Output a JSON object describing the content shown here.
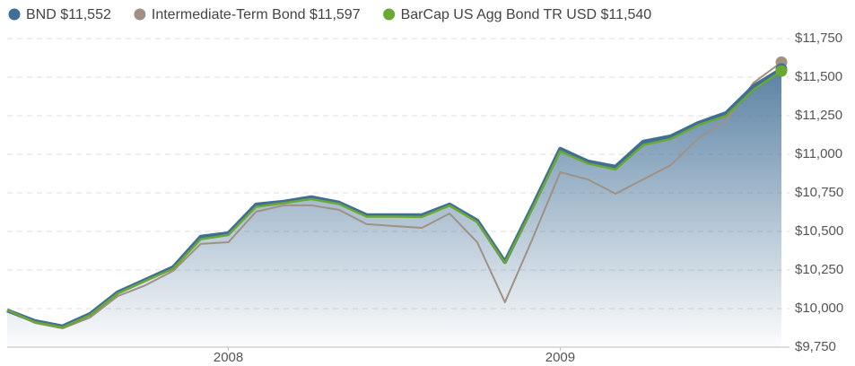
{
  "chart_data": {
    "type": "line",
    "categories": [
      null,
      null,
      null,
      null,
      null,
      null,
      null,
      null,
      "2008",
      null,
      null,
      null,
      null,
      null,
      null,
      null,
      null,
      null,
      null,
      null,
      "2009",
      null,
      null,
      null,
      null,
      null,
      null,
      null,
      null
    ],
    "series": [
      {
        "name": "BND $11,552",
        "color": "#3f6e96",
        "values": [
          9988,
          9919,
          9884,
          9965,
          10105,
          10186,
          10267,
          10465,
          10488,
          10674,
          10692,
          10721,
          10686,
          10605,
          10605,
          10605,
          10674,
          10570,
          10302,
          10663,
          11035,
          10953,
          10919,
          11081,
          11116,
          11203,
          11267,
          11442,
          11552
        ]
      },
      {
        "name": "Intermediate-Term Bond $11,597",
        "color": "#a09184",
        "values": [
          9990,
          9907,
          9872,
          9942,
          10081,
          10151,
          10244,
          10419,
          10430,
          10628,
          10669,
          10669,
          10640,
          10547,
          10535,
          10523,
          10616,
          10430,
          10041,
          10453,
          10884,
          10837,
          10744,
          10837,
          10930,
          11105,
          11221,
          11465,
          11597
        ]
      },
      {
        "name": "BarCap US Agg Bond TR USD $11,540",
        "color": "#6aa832",
        "values": [
          9990,
          9912,
          9878,
          9958,
          10098,
          10180,
          10258,
          10450,
          10477,
          10660,
          10684,
          10710,
          10678,
          10596,
          10596,
          10594,
          10668,
          10560,
          10296,
          10650,
          11020,
          10940,
          10902,
          11060,
          11100,
          11190,
          11250,
          11420,
          11540
        ]
      }
    ],
    "ylim": [
      9750,
      11750
    ],
    "yticks": [
      {
        "value": 9750,
        "label": "$9,750"
      },
      {
        "value": 10000,
        "label": "$10,000"
      },
      {
        "value": 10250,
        "label": "$10,250"
      },
      {
        "value": 10500,
        "label": "$10,500"
      },
      {
        "value": 10750,
        "label": "$10,750"
      },
      {
        "value": 11000,
        "label": "$11,000"
      },
      {
        "value": 11250,
        "label": "$11,250"
      },
      {
        "value": 11500,
        "label": "$11,500"
      },
      {
        "value": 11750,
        "label": "$11,750"
      }
    ],
    "grid": true,
    "legend": "top"
  }
}
